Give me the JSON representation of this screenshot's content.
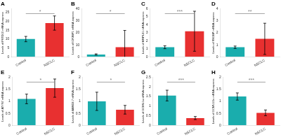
{
  "chart_data": [
    {
      "type": "bar",
      "title": "A",
      "ylabel": "Levels of FSTD10 mRNA express",
      "categories": [
        "Control",
        "NSCLC"
      ],
      "values": [
        10,
        19
      ],
      "errors": [
        1.5,
        4.0
      ],
      "colors": [
        "#1AADAD",
        "#E83030"
      ],
      "annotation": "*",
      "ylim": [
        0,
        27
      ],
      "yticks": [
        0,
        5,
        10,
        15,
        20,
        25
      ],
      "grid": false
    },
    {
      "type": "bar",
      "title": "B",
      "ylabel": "Levels of IGF2BP1 mRNA express",
      "categories": [
        "Control",
        "NSCLC"
      ],
      "values": [
        2,
        8
      ],
      "errors": [
        0.5,
        14
      ],
      "colors": [
        "#1AADAD",
        "#E83030"
      ],
      "annotation": "*",
      "ylim": [
        0,
        40
      ],
      "yticks": [
        0,
        10,
        20,
        30,
        40
      ],
      "grid": false
    },
    {
      "type": "bar",
      "title": "C",
      "ylabel": "Levels of MRPL21 mRNA express",
      "categories": [
        "Control",
        "NSCLC"
      ],
      "values": [
        1.2,
        3.2
      ],
      "errors": [
        0.18,
        2.5
      ],
      "colors": [
        "#1AADAD",
        "#E83030"
      ],
      "annotation": "***",
      "ylim": [
        0,
        6
      ],
      "yticks": [
        0,
        1,
        2,
        3,
        4,
        5,
        6
      ],
      "grid": false
    },
    {
      "type": "bar",
      "title": "D",
      "ylabel": "Levels of SSGBP mRNA express",
      "categories": [
        "Control",
        "NSCLC"
      ],
      "values": [
        0.8,
        1.5
      ],
      "errors": [
        0.1,
        1.3
      ],
      "colors": [
        "#1AADAD",
        "#E83030"
      ],
      "annotation": "**",
      "ylim": [
        0,
        4
      ],
      "yticks": [
        0,
        1,
        2,
        3,
        4
      ],
      "grid": false
    },
    {
      "type": "bar",
      "title": "E",
      "ylabel": "Levels of ATYS7 mRNA express",
      "categories": [
        "Control",
        "NSCLC"
      ],
      "values": [
        1.1,
        1.55
      ],
      "errors": [
        0.2,
        0.38
      ],
      "colors": [
        "#1AADAD",
        "#E83030"
      ],
      "annotation": "*",
      "ylim": [
        0,
        2
      ],
      "yticks": [
        0,
        0.5,
        1,
        1.5,
        2
      ],
      "grid": false
    },
    {
      "type": "bar",
      "title": "F",
      "ylabel": "Levels of ABRD2.7 mRNA express",
      "categories": [
        "Control",
        "NSCLC"
      ],
      "values": [
        1.0,
        0.65
      ],
      "errors": [
        0.38,
        0.18
      ],
      "colors": [
        "#1AADAD",
        "#E83030"
      ],
      "annotation": "*",
      "ylim": [
        0,
        2
      ],
      "yticks": [
        0,
        0.5,
        1,
        1.5,
        2
      ],
      "grid": false
    },
    {
      "type": "bar",
      "title": "G",
      "ylabel": "Levels of GCMU1a mRNA express",
      "categories": [
        "Control",
        "NSCLC"
      ],
      "values": [
        1.55,
        0.38
      ],
      "errors": [
        0.28,
        0.08
      ],
      "colors": [
        "#1AADAD",
        "#E83030"
      ],
      "annotation": "***",
      "ylim": [
        0,
        2.5
      ],
      "yticks": [
        0,
        0.5,
        1,
        1.5,
        2,
        2.5
      ],
      "grid": false
    },
    {
      "type": "bar",
      "title": "H",
      "ylabel": "Levels of GCMU1Gc mRNA express",
      "categories": [
        "Control",
        "NSCLC"
      ],
      "values": [
        1.2,
        0.52
      ],
      "errors": [
        0.15,
        0.12
      ],
      "colors": [
        "#1AADAD",
        "#E83030"
      ],
      "annotation": "***",
      "ylim": [
        0,
        2
      ],
      "yticks": [
        0,
        0.5,
        1,
        1.5,
        2
      ],
      "grid": false
    }
  ]
}
